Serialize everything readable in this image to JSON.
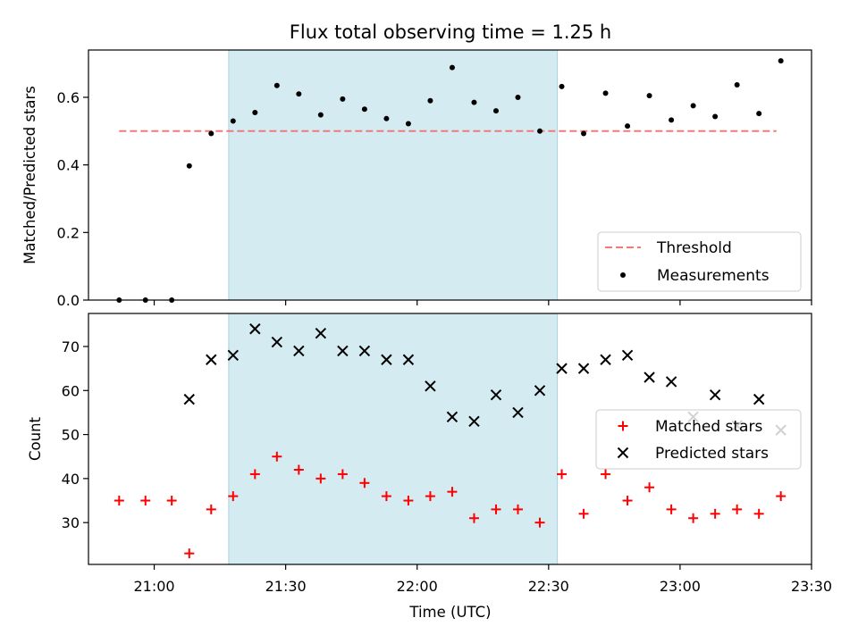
{
  "chart_data": [
    {
      "type": "scatter",
      "title": "Flux total observing time = 1.25 h",
      "xlabel": "",
      "ylabel": "Matched/Predicted stars",
      "xlim": [
        "20:45",
        "23:30"
      ],
      "ylim": [
        0,
        0.74
      ],
      "yticks": [
        0.0,
        0.2,
        0.4,
        0.6
      ],
      "ytick_labels": [
        "0.0",
        "0.2",
        "0.4",
        "0.6"
      ],
      "shaded_interval": [
        "21:17",
        "22:32"
      ],
      "shade_color": "#d4ebf1",
      "threshold": {
        "name": "Threshold",
        "value": 0.5,
        "x_range": [
          "20:52",
          "23:22"
        ],
        "color": "#f07a7a",
        "style": "dashed"
      },
      "legend": {
        "placement": "lower-right",
        "entries": [
          "Threshold",
          "Measurements"
        ]
      },
      "series": [
        {
          "name": "Measurements",
          "color": "#000000",
          "marker": "dot",
          "points": [
            [
              "20:52",
              0.0
            ],
            [
              "20:58",
              0.0
            ],
            [
              "21:04",
              0.0
            ],
            [
              "21:08",
              0.397
            ],
            [
              "21:13",
              0.493
            ],
            [
              "21:18",
              0.53
            ],
            [
              "21:23",
              0.555
            ],
            [
              "21:28",
              0.635
            ],
            [
              "21:33",
              0.61
            ],
            [
              "21:38",
              0.548
            ],
            [
              "21:43",
              0.595
            ],
            [
              "21:48",
              0.565
            ],
            [
              "21:53",
              0.537
            ],
            [
              "21:58",
              0.522
            ],
            [
              "22:03",
              0.59
            ],
            [
              "22:08",
              0.688
            ],
            [
              "22:13",
              0.585
            ],
            [
              "22:18",
              0.56
            ],
            [
              "22:23",
              0.6
            ],
            [
              "22:28",
              0.5
            ],
            [
              "22:33",
              0.632
            ],
            [
              "22:38",
              0.493
            ],
            [
              "22:43",
              0.612
            ],
            [
              "22:48",
              0.515
            ],
            [
              "22:53",
              0.605
            ],
            [
              "22:58",
              0.533
            ],
            [
              "23:03",
              0.575
            ],
            [
              "23:08",
              0.543
            ],
            [
              "23:13",
              0.637
            ],
            [
              "23:18",
              0.552
            ],
            [
              "23:23",
              0.708
            ]
          ]
        }
      ]
    },
    {
      "type": "scatter",
      "title": "",
      "xlabel": "Time (UTC)",
      "ylabel": "Count",
      "xlim": [
        "20:45",
        "23:30"
      ],
      "ylim": [
        20.5,
        77.5
      ],
      "xticks": [
        "21:00",
        "21:30",
        "22:00",
        "22:30",
        "23:00",
        "23:30"
      ],
      "yticks": [
        30,
        40,
        50,
        60,
        70
      ],
      "shaded_interval": [
        "21:17",
        "22:32"
      ],
      "shade_color": "#d4ebf1",
      "legend": {
        "placement": "center-right",
        "entries": [
          "Matched stars",
          "Predicted stars"
        ]
      },
      "series": [
        {
          "name": "Matched stars",
          "color": "#ff0000",
          "marker": "plus",
          "points": [
            [
              "20:52",
              35
            ],
            [
              "20:58",
              35
            ],
            [
              "21:04",
              35
            ],
            [
              "21:08",
              23
            ],
            [
              "21:13",
              33
            ],
            [
              "21:18",
              36
            ],
            [
              "21:23",
              41
            ],
            [
              "21:28",
              45
            ],
            [
              "21:33",
              42
            ],
            [
              "21:38",
              40
            ],
            [
              "21:43",
              41
            ],
            [
              "21:48",
              39
            ],
            [
              "21:53",
              36
            ],
            [
              "21:58",
              35
            ],
            [
              "22:03",
              36
            ],
            [
              "22:08",
              37
            ],
            [
              "22:13",
              31
            ],
            [
              "22:18",
              33
            ],
            [
              "22:23",
              33
            ],
            [
              "22:28",
              30
            ],
            [
              "22:33",
              41
            ],
            [
              "22:38",
              32
            ],
            [
              "22:43",
              41
            ],
            [
              "22:48",
              35
            ],
            [
              "22:53",
              38
            ],
            [
              "22:58",
              33
            ],
            [
              "23:03",
              31
            ],
            [
              "23:08",
              32
            ],
            [
              "23:13",
              33
            ],
            [
              "23:18",
              32
            ],
            [
              "23:23",
              36
            ]
          ]
        },
        {
          "name": "Predicted stars",
          "color": "#000000",
          "marker": "x",
          "points": [
            [
              "21:08",
              58
            ],
            [
              "21:13",
              67
            ],
            [
              "21:18",
              68
            ],
            [
              "21:23",
              74
            ],
            [
              "21:28",
              71
            ],
            [
              "21:33",
              69
            ],
            [
              "21:38",
              73
            ],
            [
              "21:43",
              69
            ],
            [
              "21:48",
              69
            ],
            [
              "21:53",
              67
            ],
            [
              "21:58",
              67
            ],
            [
              "22:03",
              61
            ],
            [
              "22:08",
              54
            ],
            [
              "22:13",
              53
            ],
            [
              "22:18",
              59
            ],
            [
              "22:23",
              55
            ],
            [
              "22:28",
              60
            ],
            [
              "22:33",
              65
            ],
            [
              "22:38",
              65
            ],
            [
              "22:43",
              67
            ],
            [
              "22:48",
              68
            ],
            [
              "22:53",
              63
            ],
            [
              "22:58",
              62
            ],
            [
              "23:03",
              54
            ],
            [
              "23:08",
              59
            ],
            [
              "23:13",
              52
            ],
            [
              "23:18",
              58
            ],
            [
              "23:23",
              51
            ]
          ]
        }
      ]
    }
  ]
}
